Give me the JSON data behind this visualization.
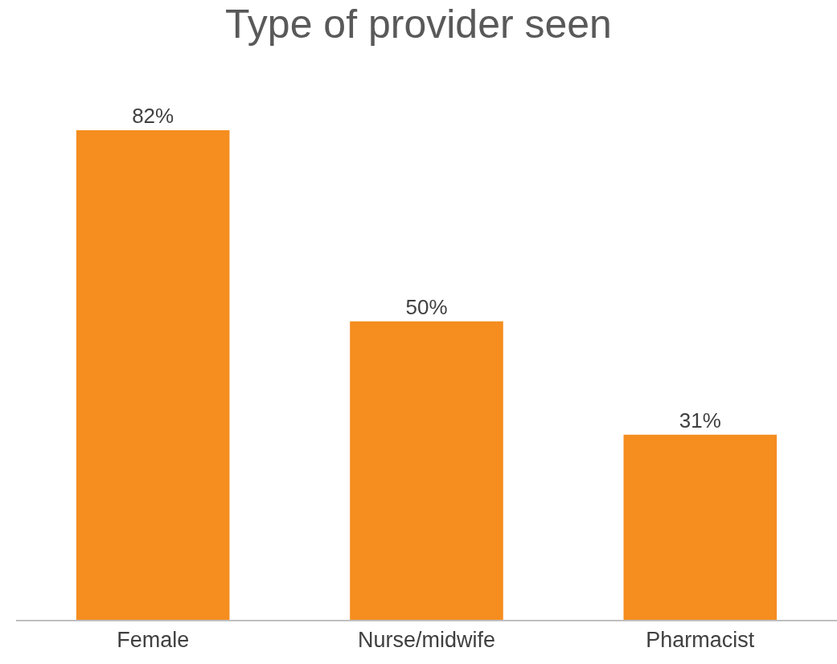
{
  "chart_data": {
    "type": "bar",
    "title": "Type of provider seen",
    "categories": [
      "Female",
      "Nurse/midwife",
      "Pharmacist"
    ],
    "values": [
      82,
      50,
      31
    ],
    "value_labels": [
      "82%",
      "50%",
      "31%"
    ],
    "color": "#f58d1f"
  }
}
